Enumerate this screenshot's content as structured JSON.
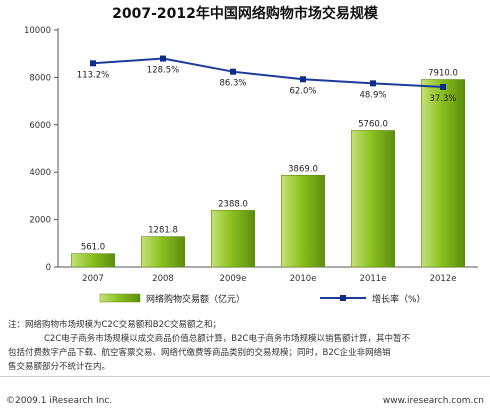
{
  "chart_data": {
    "type": "bar",
    "title": "2007-2012年中国网络购物市场交易规模",
    "categories": [
      "2007",
      "2008",
      "2009e",
      "2010e",
      "2011e",
      "2012e"
    ],
    "series": [
      {
        "name": "网络购物交易额（亿元）",
        "type": "bar",
        "axis": "left",
        "values": [
          561.0,
          1281.8,
          2388.0,
          3869.0,
          5760.0,
          7910.0
        ],
        "labels": [
          "561.0",
          "1281.8",
          "2388.0",
          "3869.0",
          "5760.0",
          "7910.0"
        ]
      },
      {
        "name": "增长率（%）",
        "type": "line",
        "axis": "right",
        "values": [
          113.2,
          128.5,
          86.3,
          62.0,
          48.9,
          37.3
        ],
        "labels": [
          "113.2%",
          "128.5%",
          "86.3%",
          "62.0%",
          "48.9%",
          "37.3%"
        ]
      }
    ],
    "yaxis": {
      "ticks": [
        0,
        2000,
        4000,
        6000,
        8000,
        10000
      ],
      "ylim": [
        0,
        10000
      ]
    },
    "y2_scale": {
      "ylim": [
        -540,
        220
      ]
    },
    "grid": false,
    "legend_position": "bottom",
    "colors": {
      "bar": "#8dc21f",
      "bar_light": "#c5e17a",
      "bar_dark": "#5e8c0f",
      "line": "#1c3c9c",
      "marker": "#0c2e8a"
    }
  },
  "notes": {
    "line1": "注：网络购物市场规模为C2C交易额和B2C交易额之和；",
    "line2": "C2C电子商务市场规模以成交商品价值总额计算，B2C电子商务市场规模以销售额计算，其中暂不",
    "line3": "包括付费数字产品下载、航空客票交易、网络代缴费等商品类别的交易规模；同时，B2C企业非网络销",
    "line4": "售交易额部分不统计在内。"
  },
  "footer": {
    "left": "©2009.1 iResearch Inc.",
    "right": "www.iresearch.com.cn"
  }
}
